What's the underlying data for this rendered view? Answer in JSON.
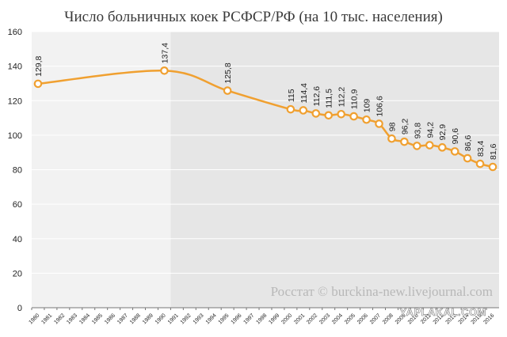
{
  "title": "Число больничных коек РСФСР/РФ (на 10 тыс. населения)",
  "credit": "Росстат © burckina-new.livejournal.com",
  "watermark": "YAPLAKAL.COM",
  "colors": {
    "line": "#f0a030",
    "marker_fill": "#ffffff",
    "bg_light": "#f2f2f2",
    "bg_dark": "#e6e6e6",
    "grid": "#ffffff"
  },
  "chart_data": {
    "type": "line",
    "title": "Число больничных коек РСФСР/РФ (на 10 тыс. населения)",
    "xlabel": "",
    "ylabel": "",
    "ylim": [
      0,
      160
    ],
    "yticks": [
      0,
      20,
      40,
      60,
      80,
      100,
      120,
      140,
      160
    ],
    "grid": true,
    "categories": [
      "1980",
      "1981",
      "1982",
      "1983",
      "1984",
      "1985",
      "1986",
      "1987",
      "1988",
      "1989",
      "1990",
      "1991",
      "1992",
      "1993",
      "1994",
      "1995",
      "1996",
      "1997",
      "1998",
      "1999",
      "2000",
      "2001",
      "2002",
      "2003",
      "2004",
      "2005",
      "2006",
      "2007",
      "2008",
      "2009",
      "2010",
      "2011",
      "2012",
      "2013",
      "2014",
      "2015",
      "2016"
    ],
    "shaded_from": "1991",
    "points": [
      {
        "x": "1980",
        "y": 129.8,
        "label": "129,8"
      },
      {
        "x": "1990",
        "y": 137.4,
        "label": "137,4"
      },
      {
        "x": "1995",
        "y": 125.8,
        "label": "125,8"
      },
      {
        "x": "2000",
        "y": 115,
        "label": "115"
      },
      {
        "x": "2001",
        "y": 114.4,
        "label": "114,4"
      },
      {
        "x": "2002",
        "y": 112.6,
        "label": "112,6"
      },
      {
        "x": "2003",
        "y": 111.5,
        "label": "111,5"
      },
      {
        "x": "2004",
        "y": 112.2,
        "label": "112,2"
      },
      {
        "x": "2005",
        "y": 110.9,
        "label": "110,9"
      },
      {
        "x": "2006",
        "y": 109,
        "label": "109"
      },
      {
        "x": "2007",
        "y": 106.6,
        "label": "106,6"
      },
      {
        "x": "2008",
        "y": 98,
        "label": "98"
      },
      {
        "x": "2009",
        "y": 96.2,
        "label": "96,2"
      },
      {
        "x": "2010",
        "y": 93.8,
        "label": "93,8"
      },
      {
        "x": "2011",
        "y": 94.2,
        "label": "94,2"
      },
      {
        "x": "2012",
        "y": 92.9,
        "label": "92,9"
      },
      {
        "x": "2013",
        "y": 90.6,
        "label": "90,6"
      },
      {
        "x": "2014",
        "y": 86.6,
        "label": "86,6"
      },
      {
        "x": "2015",
        "y": 83.4,
        "label": "83,4"
      },
      {
        "x": "2016",
        "y": 81.6,
        "label": "81,6"
      }
    ]
  }
}
